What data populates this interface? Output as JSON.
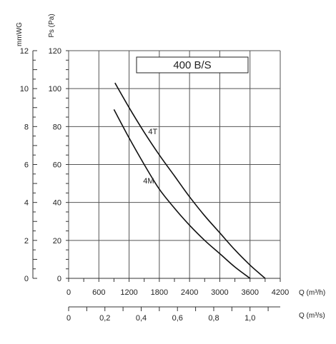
{
  "chart_data": {
    "type": "line",
    "title": "400 B/S",
    "units": {
      "left_axis": "mmWG",
      "pressure_axis": "Ps (Pa)",
      "flow_hourly": "Q (m³/h)",
      "flow_seconds": "Q (m³/s)"
    },
    "grid": true,
    "ylim": [
      0,
      120
    ],
    "xlim": [
      0,
      4200
    ],
    "pressure_ticks": [
      0,
      20,
      40,
      60,
      80,
      100,
      120
    ],
    "pressure_tick_labels": [
      "0",
      "20",
      "40",
      "60",
      "80",
      "100",
      "120"
    ],
    "mmwg_ticks": [
      0,
      2,
      4,
      6,
      8,
      10,
      12
    ],
    "mmwg_tick_labels": [
      "0",
      "2",
      "4",
      "6",
      "8",
      "10",
      "12"
    ],
    "flow_hourly_ticks": [
      0,
      600,
      1200,
      1800,
      2400,
      3000,
      3600,
      4200
    ],
    "flow_hourly_tick_labels": [
      "0",
      "600",
      "1200",
      "1800",
      "2400",
      "3000",
      "3600",
      "4200"
    ],
    "flow_seconds_ticks": [
      0,
      0.2,
      0.4,
      0.6,
      0.8,
      1.0
    ],
    "flow_seconds_tick_labels": [
      "0",
      "0,2",
      "0,4",
      "0,6",
      "0,8",
      "1,0"
    ],
    "series": [
      {
        "name": "4T",
        "x": [
          920,
          1200,
          1500,
          1800,
          2100,
          2400,
          2700,
          3000,
          3300,
          3600,
          3900
        ],
        "y": [
          103,
          90,
          77,
          65,
          54,
          43,
          33,
          24,
          15,
          7,
          0
        ]
      },
      {
        "name": "4M",
        "x": [
          900,
          1200,
          1500,
          1800,
          2100,
          2400,
          2700,
          3000,
          3300,
          3600
        ],
        "y": [
          89,
          74,
          60,
          47,
          37,
          28,
          20,
          13,
          6,
          0
        ]
      }
    ],
    "series_label_positions": [
      {
        "name": "4T",
        "x": 1580,
        "y": 76
      },
      {
        "name": "4M",
        "x": 1480,
        "y": 50
      }
    ]
  }
}
